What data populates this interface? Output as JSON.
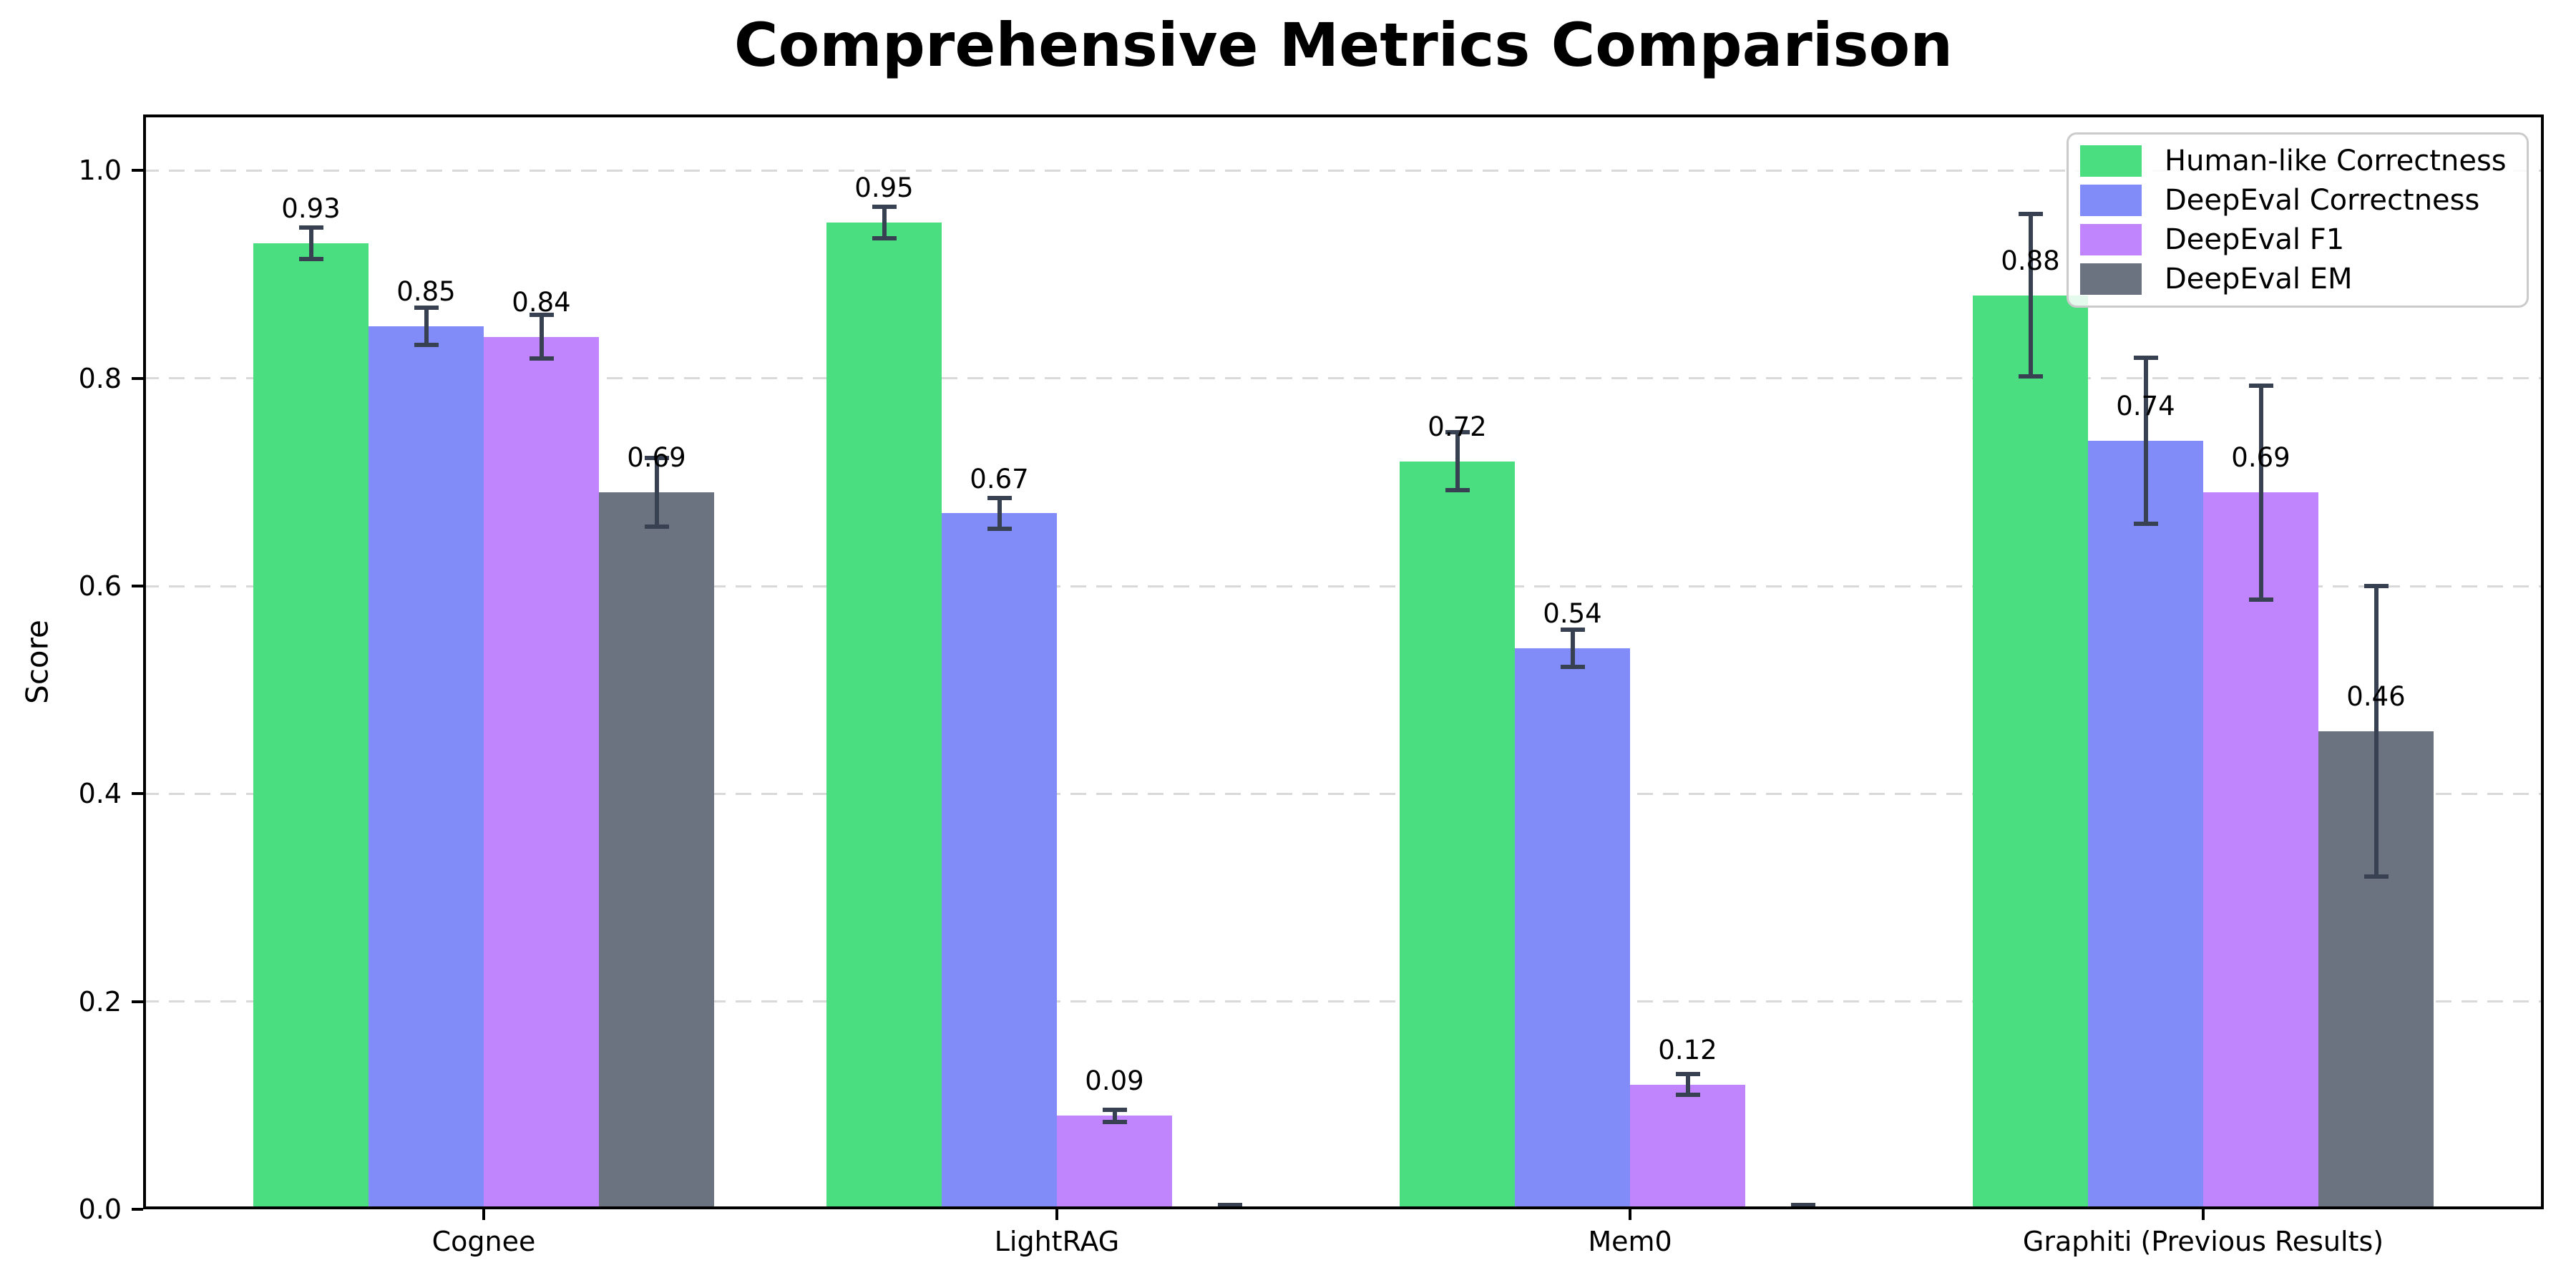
{
  "chart_data": {
    "type": "bar",
    "title": "Comprehensive Metrics Comparison",
    "ylabel": "Score",
    "xlabel": "",
    "categories": [
      "Cognee",
      "LightRAG",
      "Mem0",
      "Graphiti (Previous Results)"
    ],
    "series": [
      {
        "name": "Human-like Correctness",
        "color": "#4ade80",
        "values": [
          0.93,
          0.95,
          0.72,
          0.88
        ],
        "errors": [
          0.015,
          0.015,
          0.028,
          0.078
        ],
        "labels": [
          "0.93",
          "0.95",
          "0.72",
          "0.88"
        ]
      },
      {
        "name": "DeepEval Correctness",
        "color": "#818cf8",
        "values": [
          0.85,
          0.67,
          0.54,
          0.74
        ],
        "errors": [
          0.018,
          0.015,
          0.018,
          0.08
        ],
        "labels": [
          "0.85",
          "0.67",
          "0.54",
          "0.74"
        ]
      },
      {
        "name": "DeepEval F1",
        "color": "#c084fc",
        "values": [
          0.84,
          0.09,
          0.12,
          0.69
        ],
        "errors": [
          0.021,
          0.006,
          0.01,
          0.103
        ],
        "labels": [
          "0.84",
          "0.09",
          "0.12",
          "0.69"
        ]
      },
      {
        "name": "DeepEval EM",
        "color": "#6b7280",
        "values": [
          0.69,
          0.0,
          0.0,
          0.46
        ],
        "errors": [
          0.033,
          0.004,
          0.004,
          0.14
        ],
        "labels": [
          "0.69",
          "",
          "",
          "0.46"
        ]
      }
    ],
    "yticks": [
      0.0,
      0.2,
      0.4,
      0.6,
      0.8,
      1.0
    ],
    "ytick_labels": [
      "0.0",
      "0.2",
      "0.4",
      "0.6",
      "0.8",
      "1.0"
    ],
    "ylim": [
      0,
      1.054
    ],
    "grid": "horizontal dashed",
    "grid_color": "#d9d9d9",
    "legend_position": "upper right",
    "error_bar_color": "#374151",
    "axis_color": "#000000",
    "background_color": "#ffffff"
  }
}
